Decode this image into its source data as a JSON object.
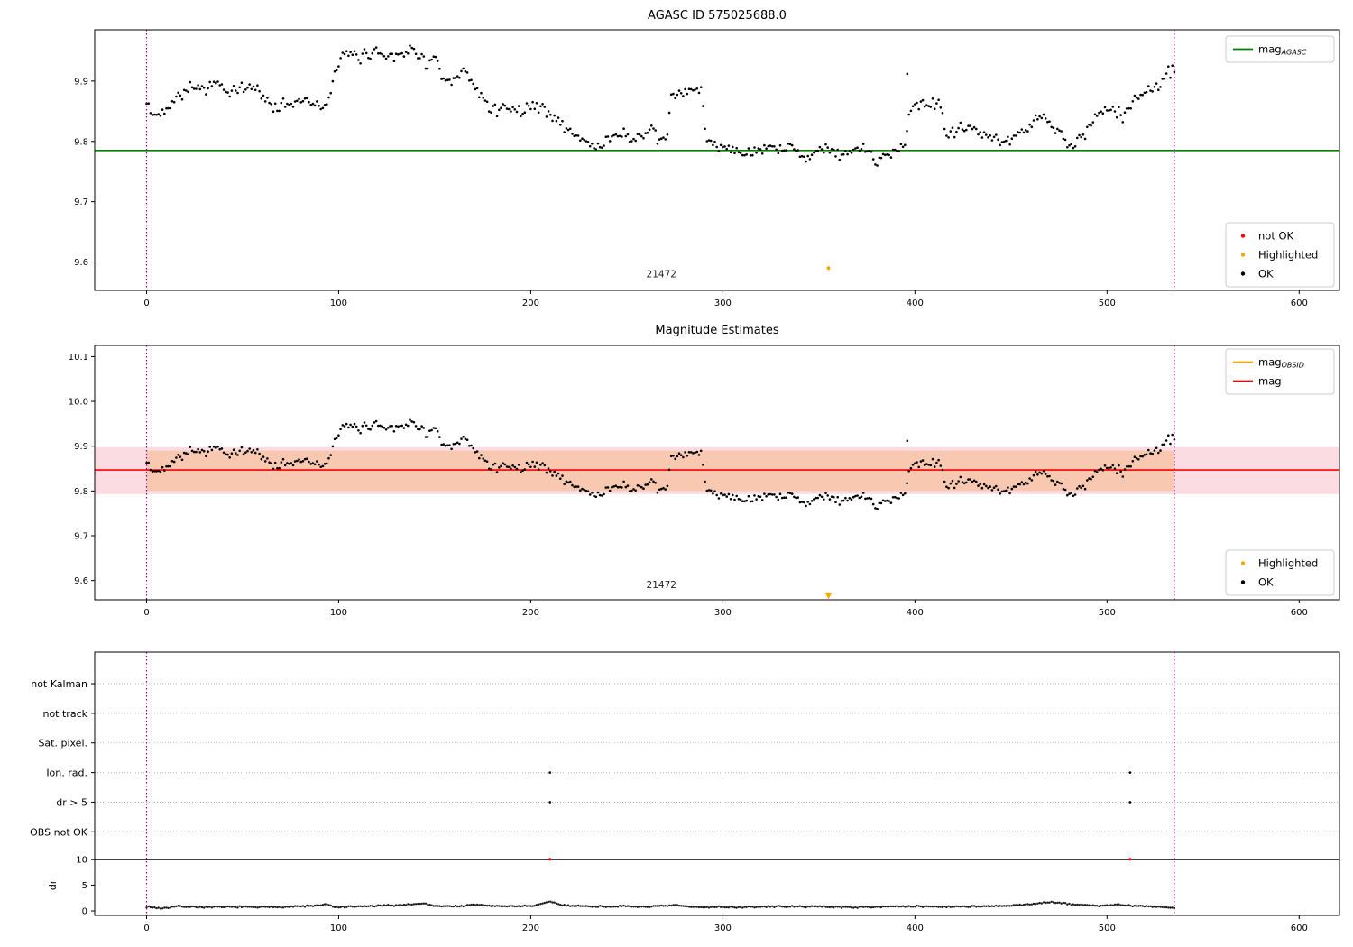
{
  "colors": {
    "ok_point": "#000000",
    "not_ok": "#ff0000",
    "highlighted": "#ffa500",
    "mag_agasc_line": "#007f00",
    "mag_line": "#ff0000",
    "mag_obsid_line": "#ffa500",
    "band_inner": "#f8c8b0",
    "band_outer": "#fbdce2",
    "vline": "#8b008b",
    "grid_dotted": "#b8b8b8"
  },
  "chart_data": [
    {
      "type": "scatter",
      "title": "AGASC ID 575025688.0",
      "xlim": [
        -27,
        621
      ],
      "ylim": [
        9.553,
        9.985
      ],
      "xticks": [
        "0",
        "100",
        "200",
        "300",
        "400",
        "500",
        "600"
      ],
      "yticks": [
        "9.6",
        "9.7",
        "9.8",
        "9.9"
      ],
      "hlines": [
        {
          "name": "mag-agasc-line",
          "label": "mag_AGASC",
          "value": 9.785,
          "color": "#007f00"
        }
      ],
      "vlines": [
        0,
        535
      ],
      "annotation": {
        "text": "21472",
        "x": 268,
        "y": 9.575
      },
      "highlighted": [
        {
          "x": 355,
          "y": 9.59
        }
      ],
      "extra_points": [
        [
          396,
          9.912
        ]
      ],
      "legend_top": [
        {
          "marker": "line",
          "color": "#007f00",
          "label": "mag",
          "sub": "AGASC"
        }
      ],
      "legend_bottom": [
        {
          "marker": "dot",
          "color": "#ff0000",
          "label": "not OK"
        },
        {
          "marker": "dot",
          "color": "#ffa500",
          "label": "Highlighted"
        },
        {
          "marker": "dot",
          "color": "#000000",
          "label": "OK"
        }
      ],
      "series": {
        "name": "OK",
        "n_points": 520,
        "x_start": 0,
        "x_end": 535,
        "noise": 0.009,
        "seed": 42,
        "anchors": [
          [
            0,
            9.862
          ],
          [
            4,
            9.84
          ],
          [
            8,
            9.848
          ],
          [
            12,
            9.862
          ],
          [
            16,
            9.876
          ],
          [
            20,
            9.884
          ],
          [
            24,
            9.894
          ],
          [
            28,
            9.886
          ],
          [
            32,
            9.89
          ],
          [
            36,
            9.898
          ],
          [
            40,
            9.886
          ],
          [
            44,
            9.876
          ],
          [
            48,
            9.89
          ],
          [
            52,
            9.886
          ],
          [
            56,
            9.894
          ],
          [
            60,
            9.876
          ],
          [
            64,
            9.862
          ],
          [
            68,
            9.856
          ],
          [
            72,
            9.866
          ],
          [
            76,
            9.86
          ],
          [
            80,
            9.87
          ],
          [
            84,
            9.874
          ],
          [
            88,
            9.86
          ],
          [
            92,
            9.85
          ],
          [
            96,
            9.882
          ],
          [
            100,
            9.934
          ],
          [
            106,
            9.944
          ],
          [
            112,
            9.94
          ],
          [
            118,
            9.95
          ],
          [
            124,
            9.944
          ],
          [
            130,
            9.944
          ],
          [
            136,
            9.95
          ],
          [
            142,
            9.948
          ],
          [
            146,
            9.924
          ],
          [
            150,
            9.94
          ],
          [
            154,
            9.902
          ],
          [
            158,
            9.892
          ],
          [
            162,
            9.906
          ],
          [
            166,
            9.918
          ],
          [
            170,
            9.89
          ],
          [
            174,
            9.876
          ],
          [
            178,
            9.86
          ],
          [
            183,
            9.852
          ],
          [
            188,
            9.858
          ],
          [
            193,
            9.85
          ],
          [
            198,
            9.856
          ],
          [
            203,
            9.86
          ],
          [
            208,
            9.85
          ],
          [
            213,
            9.838
          ],
          [
            218,
            9.822
          ],
          [
            223,
            9.812
          ],
          [
            228,
            9.8
          ],
          [
            233,
            9.792
          ],
          [
            238,
            9.796
          ],
          [
            243,
            9.81
          ],
          [
            248,
            9.814
          ],
          [
            253,
            9.8
          ],
          [
            258,
            9.81
          ],
          [
            263,
            9.814
          ],
          [
            268,
            9.8
          ],
          [
            271,
            9.802
          ],
          [
            273,
            9.884
          ],
          [
            277,
            9.876
          ],
          [
            281,
            9.88
          ],
          [
            285,
            9.886
          ],
          [
            289,
            9.884
          ],
          [
            291,
            9.806
          ],
          [
            295,
            9.792
          ],
          [
            300,
            9.796
          ],
          [
            305,
            9.786
          ],
          [
            310,
            9.78
          ],
          [
            315,
            9.776
          ],
          [
            320,
            9.786
          ],
          [
            325,
            9.79
          ],
          [
            330,
            9.786
          ],
          [
            335,
            9.79
          ],
          [
            340,
            9.78
          ],
          [
            345,
            9.776
          ],
          [
            350,
            9.79
          ],
          [
            355,
            9.784
          ],
          [
            360,
            9.78
          ],
          [
            365,
            9.776
          ],
          [
            370,
            9.79
          ],
          [
            375,
            9.784
          ],
          [
            380,
            9.77
          ],
          [
            385,
            9.776
          ],
          [
            390,
            9.786
          ],
          [
            395,
            9.792
          ],
          [
            397,
            9.856
          ],
          [
            401,
            9.864
          ],
          [
            405,
            9.856
          ],
          [
            409,
            9.86
          ],
          [
            413,
            9.866
          ],
          [
            416,
            9.812
          ],
          [
            420,
            9.816
          ],
          [
            424,
            9.82
          ],
          [
            428,
            9.824
          ],
          [
            433,
            9.816
          ],
          [
            438,
            9.81
          ],
          [
            443,
            9.8
          ],
          [
            448,
            9.796
          ],
          [
            453,
            9.81
          ],
          [
            458,
            9.824
          ],
          [
            463,
            9.84
          ],
          [
            468,
            9.836
          ],
          [
            473,
            9.82
          ],
          [
            478,
            9.8
          ],
          [
            483,
            9.796
          ],
          [
            488,
            9.81
          ],
          [
            493,
            9.834
          ],
          [
            498,
            9.848
          ],
          [
            503,
            9.854
          ],
          [
            508,
            9.84
          ],
          [
            513,
            9.864
          ],
          [
            518,
            9.878
          ],
          [
            523,
            9.888
          ],
          [
            528,
            9.896
          ],
          [
            531,
            9.912
          ],
          [
            535,
            9.92
          ]
        ]
      }
    },
    {
      "type": "scatter",
      "title": "Magnitude Estimates",
      "xlim": [
        -27,
        621
      ],
      "ylim": [
        9.557,
        10.125
      ],
      "xticks": [
        "0",
        "100",
        "200",
        "300",
        "400",
        "500",
        "600"
      ],
      "yticks": [
        "9.6",
        "9.7",
        "9.8",
        "9.9",
        "10.0",
        "10.1"
      ],
      "hlines": [
        {
          "name": "mag-line",
          "label": "mag",
          "value": 9.847,
          "color": "#ff0000"
        }
      ],
      "band_outer": {
        "ymin": 9.793,
        "ymax": 9.898,
        "color": "#fbdce2"
      },
      "band_inner": {
        "ymin": 9.8,
        "ymax": 9.89,
        "x0": 0,
        "x1": 535,
        "color": "#f8c8b0"
      },
      "vlines": [
        0,
        535
      ],
      "annotation": {
        "text": "21472",
        "x": 268,
        "y": 9.583
      },
      "highlighted": [
        {
          "x": 355,
          "y": 9.567,
          "marker": "triangle-down"
        }
      ],
      "extra_points": [
        [
          396,
          9.912
        ]
      ],
      "legend_top": [
        {
          "marker": "line",
          "color": "#ffa500",
          "label": "mag",
          "sub": "OBSID"
        },
        {
          "marker": "line",
          "color": "#ff0000",
          "label": "mag",
          "sub": ""
        }
      ],
      "legend_bottom": [
        {
          "marker": "dot",
          "color": "#ffa500",
          "label": "Highlighted"
        },
        {
          "marker": "dot",
          "color": "#000000",
          "label": "OK"
        }
      ],
      "series_same_as": 0
    },
    {
      "type": "flags-dr",
      "categories": [
        "not Kalman",
        "not track",
        "Sat. pixel.",
        "Ion. rad.",
        "dr > 5",
        "OBS not OK"
      ],
      "ylabel": "dr",
      "dr_ticks": [
        "10",
        "5",
        "0"
      ],
      "dr_limit_line": 10,
      "xlim": [
        -27,
        621
      ],
      "xticks": [
        "0",
        "100",
        "200",
        "300",
        "400",
        "500",
        "600"
      ],
      "vlines": [
        0,
        535
      ],
      "flag_points": [
        {
          "category": "Ion. rad.",
          "x": [
            210,
            512
          ]
        },
        {
          "category": "dr > 5",
          "x": [
            210,
            512
          ]
        }
      ],
      "not_ok_points": [
        {
          "x": 210,
          "dr": 10
        },
        {
          "x": 512,
          "dr": 10
        }
      ],
      "dr_series": {
        "n_points": 520,
        "x_start": 0,
        "x_end": 535,
        "noise": 0.12,
        "seed": 7,
        "anchors": [
          [
            0,
            0.8
          ],
          [
            8,
            0.5
          ],
          [
            16,
            0.9
          ],
          [
            24,
            0.8
          ],
          [
            32,
            0.7
          ],
          [
            40,
            0.75
          ],
          [
            48,
            0.8
          ],
          [
            56,
            0.7
          ],
          [
            64,
            0.75
          ],
          [
            72,
            0.8
          ],
          [
            80,
            0.9
          ],
          [
            88,
            1.0
          ],
          [
            94,
            1.25
          ],
          [
            98,
            0.7
          ],
          [
            106,
            0.8
          ],
          [
            114,
            0.9
          ],
          [
            122,
            1.0
          ],
          [
            130,
            1.1
          ],
          [
            138,
            1.3
          ],
          [
            144,
            1.45
          ],
          [
            150,
            1.0
          ],
          [
            158,
            0.9
          ],
          [
            166,
            1.0
          ],
          [
            172,
            1.25
          ],
          [
            178,
            1.0
          ],
          [
            186,
            0.9
          ],
          [
            194,
            0.95
          ],
          [
            202,
            1.0
          ],
          [
            207,
            1.5
          ],
          [
            211,
            1.8
          ],
          [
            215,
            1.2
          ],
          [
            222,
            1.0
          ],
          [
            230,
            0.9
          ],
          [
            238,
            0.85
          ],
          [
            246,
            0.9
          ],
          [
            254,
            0.8
          ],
          [
            262,
            0.85
          ],
          [
            270,
            0.95
          ],
          [
            276,
            1.1
          ],
          [
            282,
            0.8
          ],
          [
            290,
            0.7
          ],
          [
            298,
            0.8
          ],
          [
            306,
            0.7
          ],
          [
            314,
            0.75
          ],
          [
            322,
            0.8
          ],
          [
            330,
            0.9
          ],
          [
            338,
            0.8
          ],
          [
            346,
            0.9
          ],
          [
            354,
            0.8
          ],
          [
            362,
            0.75
          ],
          [
            370,
            0.7
          ],
          [
            378,
            0.8
          ],
          [
            386,
            0.9
          ],
          [
            394,
            0.8
          ],
          [
            402,
            0.9
          ],
          [
            410,
            0.85
          ],
          [
            418,
            0.8
          ],
          [
            426,
            0.9
          ],
          [
            434,
            0.85
          ],
          [
            442,
            0.9
          ],
          [
            448,
            1.0
          ],
          [
            454,
            1.1
          ],
          [
            460,
            1.3
          ],
          [
            466,
            1.6
          ],
          [
            471,
            1.7
          ],
          [
            476,
            1.5
          ],
          [
            481,
            1.3
          ],
          [
            486,
            1.2
          ],
          [
            491,
            1.1
          ],
          [
            496,
            1.0
          ],
          [
            501,
            1.1
          ],
          [
            506,
            1.2
          ],
          [
            511,
            1.0
          ],
          [
            516,
            0.95
          ],
          [
            521,
            0.9
          ],
          [
            526,
            0.8
          ],
          [
            531,
            0.7
          ],
          [
            535,
            0.6
          ]
        ]
      }
    }
  ]
}
